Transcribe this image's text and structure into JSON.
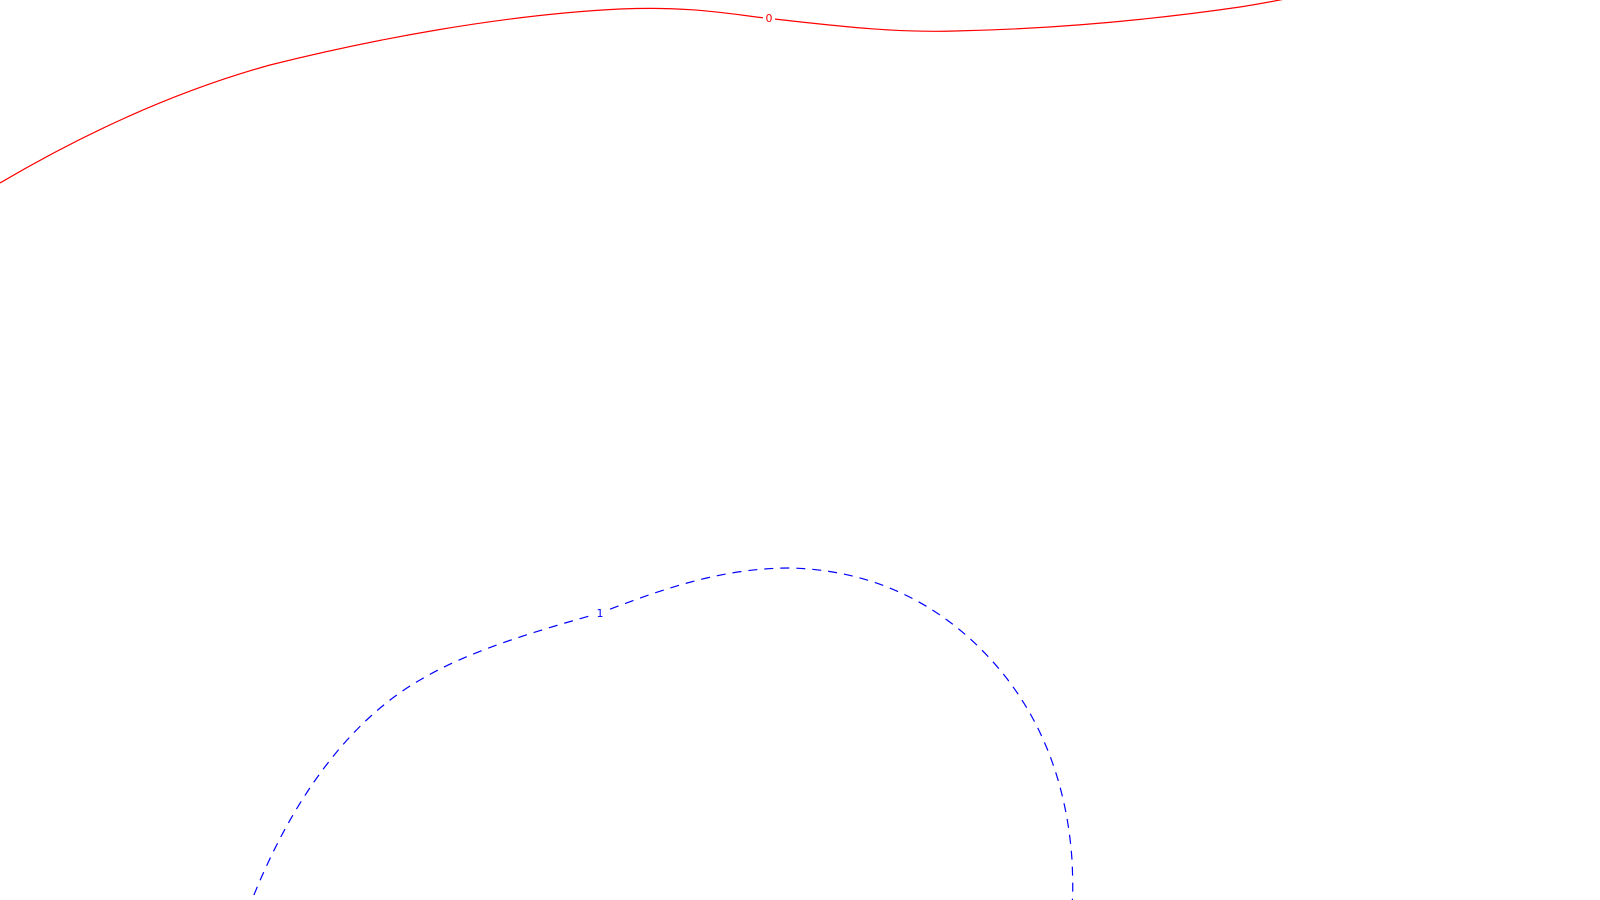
{
  "chart_data": {
    "type": "contour",
    "title": "",
    "xlabel": "",
    "ylabel": "",
    "grid": false,
    "legend": false,
    "contours": [
      {
        "level_label": "0",
        "color": "#ff0000",
        "style": "solid"
      },
      {
        "level_label": "1",
        "color": "#0000ff",
        "style": "dashed"
      }
    ]
  }
}
